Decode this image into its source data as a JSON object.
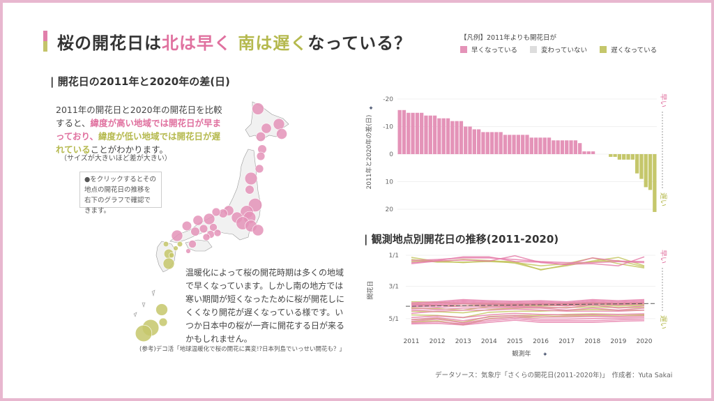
{
  "title": {
    "part1": "桜の開花日は",
    "part2": "北は早く",
    "part3": "南は遅く",
    "part4": "なっている？"
  },
  "legend": {
    "heading": "【凡例】2011年よりも開花日が",
    "items": [
      {
        "label": "早くなっている",
        "color": "#e493b8"
      },
      {
        "label": "変わっていない",
        "color": "#dddddd"
      },
      {
        "label": "遅くなっている",
        "color": "#c5c76b"
      }
    ]
  },
  "map_section": {
    "title": "| 開花日の2011年と2020年の差(日)",
    "desc": {
      "p1": "2011年の開花日と2020年の開花日を比較すると、",
      "p2": "緯度が高い地域では開花日が早まっており、",
      "p3": "緯度が低い地域では開花日が遅れている",
      "p4": "ことがわかります。"
    },
    "note": "（サイズが大きいほど差が大きい）",
    "click_hint": "●をクリックするとその地点の開花日の推移を右下のグラフで確認できます。",
    "desc2": "温暖化によって桜の開花時期は多くの地域で早くなっています。しかし南の地方では寒い期間が短くなったために桜が開花しにくくなり開花が遅くなっている様です。いつか日本中の桜が一斉に開花する日が来るかもしれません。",
    "reference": "(参考)デコ活「地球温暖化で桜の開花に異変!?日本列島でいっせい開花も？」"
  },
  "line_section": {
    "title": "| 観測地点別開花日の推移(2011-2020)"
  },
  "footer": "データソース：気象庁「さくらの開花日(2011-2020年)」　作成者：Yuta Sakai",
  "colors": {
    "pink": "#e493b8",
    "olive": "#c5c76b",
    "border": "#e8b7cf"
  },
  "chart_data": [
    {
      "type": "bar",
      "title": "開花日の2011年と2020年の差(日)",
      "ylabel": "2011年と2020年の差(日)",
      "ylim": [
        -20,
        20
      ],
      "y_reversed": true,
      "yticks": [
        "-20",
        "-10",
        "0",
        "10",
        "20"
      ],
      "side_labels": {
        "top": "早い",
        "bottom": "遅い"
      },
      "values": [
        -16,
        -16,
        -15,
        -15,
        -15,
        -15,
        -14,
        -14,
        -14,
        -13,
        -13,
        -13,
        -12,
        -12,
        -12,
        -10,
        -10,
        -9,
        -9,
        -8,
        -8,
        -8,
        -8,
        -8,
        -7,
        -7,
        -7,
        -7,
        -7,
        -7,
        -6,
        -6,
        -6,
        -6,
        -6,
        -5,
        -5,
        -5,
        -5,
        -5,
        -5,
        -4,
        -1,
        -1,
        -1,
        0,
        0,
        0,
        1,
        1,
        2,
        2,
        2,
        2,
        7,
        9,
        12,
        13,
        21
      ]
    },
    {
      "type": "line",
      "title": "観測地点別開花日の推移(2011-2020)",
      "xlabel": "観測年",
      "ylabel": "開花日",
      "x": [
        "2011",
        "2012",
        "2013",
        "2014",
        "2015",
        "2016",
        "2017",
        "2018",
        "2019",
        "2020"
      ],
      "yticks": [
        "1/1",
        "3/1",
        "5/1"
      ],
      "y_units": "day of year",
      "ylim": [
        0,
        140
      ],
      "side_labels": {
        "top": "早い",
        "bottom": "遅い"
      },
      "reference_line": 94,
      "series": [
        {
          "group": "late",
          "values": [
            8,
            13,
            13,
            12,
            14,
            20,
            16,
            5,
            16,
            24
          ]
        },
        {
          "group": "late",
          "values": [
            4,
            12,
            8,
            10,
            15,
            27,
            20,
            11,
            4,
            20
          ]
        },
        {
          "group": "late",
          "values": [
            12,
            11,
            14,
            11,
            12,
            28,
            18,
            12,
            10,
            22
          ]
        },
        {
          "group": "early",
          "values": [
            14,
            10,
            3,
            3,
            12,
            13,
            18,
            5,
            11,
            12
          ]
        },
        {
          "group": "early",
          "values": [
            16,
            11,
            9,
            11,
            1,
            14,
            17,
            16,
            20,
            3
          ]
        },
        {
          "group": "early",
          "values": [
            10,
            8,
            5,
            5,
            8,
            12,
            14,
            14,
            12,
            14
          ]
        },
        {
          "group": "late",
          "values": [
            88,
            89,
            92,
            91,
            92,
            92,
            91,
            90,
            91,
            90
          ]
        },
        {
          "group": "late",
          "values": [
            92,
            95,
            96,
            94,
            93,
            93,
            92,
            92,
            93,
            93
          ]
        },
        {
          "group": "late",
          "values": [
            100,
            101,
            104,
            97,
            96,
            96,
            95,
            95,
            96,
            95
          ]
        },
        {
          "group": "late",
          "values": [
            106,
            107,
            109,
            103,
            100,
            100,
            99,
            98,
            99,
            99
          ]
        },
        {
          "group": "late",
          "values": [
            113,
            114,
            118,
            108,
            106,
            106,
            104,
            103,
            104,
            104
          ]
        },
        {
          "group": "late",
          "values": [
            122,
            120,
            127,
            116,
            114,
            114,
            112,
            111,
            112,
            112
          ]
        },
        {
          "group": "late",
          "values": [
            126,
            124,
            132,
            120,
            117,
            117,
            115,
            114,
            115,
            114
          ]
        },
        {
          "group": "early",
          "values": [
            90,
            88,
            84,
            86,
            87,
            86,
            88,
            84,
            86,
            84
          ]
        },
        {
          "group": "early",
          "values": [
            92,
            90,
            86,
            88,
            89,
            88,
            90,
            86,
            88,
            86
          ]
        },
        {
          "group": "early",
          "values": [
            94,
            92,
            88,
            90,
            91,
            90,
            92,
            88,
            90,
            88
          ]
        },
        {
          "group": "early",
          "values": [
            96,
            94,
            90,
            92,
            93,
            92,
            94,
            90,
            92,
            90
          ]
        },
        {
          "group": "early",
          "values": [
            98,
            96,
            92,
            94,
            95,
            94,
            96,
            92,
            94,
            92
          ]
        },
        {
          "group": "early",
          "values": [
            102,
            99,
            96,
            97,
            97,
            98,
            100,
            94,
            100,
            96
          ]
        },
        {
          "group": "early",
          "values": [
            105,
            103,
            100,
            100,
            99,
            100,
            104,
            100,
            104,
            100
          ]
        },
        {
          "group": "early",
          "values": [
            110,
            106,
            104,
            104,
            102,
            104,
            106,
            106,
            106,
            104
          ]
        },
        {
          "group": "early",
          "values": [
            118,
            115,
            118,
            113,
            110,
            112,
            113,
            112,
            112,
            111
          ]
        },
        {
          "group": "early",
          "values": [
            122,
            118,
            124,
            117,
            114,
            117,
            117,
            116,
            116,
            115
          ]
        },
        {
          "group": "early",
          "values": [
            125,
            121,
            128,
            121,
            117,
            121,
            121,
            120,
            119,
            118
          ]
        },
        {
          "group": "early",
          "values": [
            128,
            126,
            130,
            124,
            120,
            124,
            124,
            124,
            122,
            121
          ]
        },
        {
          "group": "early",
          "values": [
            130,
            129,
            132,
            127,
            123,
            127,
            127,
            127,
            125,
            124
          ]
        }
      ]
    },
    {
      "type": "scatter",
      "title": "開花日の2011年と2020年の差(日) map",
      "points": [
        {
          "name": "p1",
          "diff": -13
        },
        {
          "name": "p2",
          "diff": -12
        },
        {
          "name": "p3",
          "diff": -10
        },
        {
          "name": "p4",
          "diff": -11
        },
        {
          "name": "p5",
          "diff": -9
        },
        {
          "name": "p6",
          "diff": -8
        },
        {
          "name": "p7",
          "diff": -7
        },
        {
          "name": "p8",
          "diff": -7
        },
        {
          "name": "p9",
          "diff": -14
        },
        {
          "name": "p10",
          "diff": -8
        },
        {
          "name": "p11",
          "diff": -16
        },
        {
          "name": "p12",
          "diff": -15
        },
        {
          "name": "p13",
          "diff": -12
        },
        {
          "name": "p14",
          "diff": -14
        },
        {
          "name": "p15",
          "diff": -15
        },
        {
          "name": "p16",
          "diff": -13
        },
        {
          "name": "p17",
          "diff": -12
        },
        {
          "name": "p18",
          "diff": -10
        },
        {
          "name": "p19",
          "diff": -8
        },
        {
          "name": "p20",
          "diff": -7
        },
        {
          "name": "p21",
          "diff": -12
        },
        {
          "name": "p22",
          "diff": -10
        },
        {
          "name": "p23",
          "diff": -9
        },
        {
          "name": "p24",
          "diff": -8
        },
        {
          "name": "p25",
          "diff": -7
        },
        {
          "name": "p26",
          "diff": -6
        },
        {
          "name": "p27",
          "diff": -6
        },
        {
          "name": "p28",
          "diff": -5
        },
        {
          "name": "p29",
          "diff": -5
        },
        {
          "name": "p30",
          "diff": -12
        },
        {
          "name": "p31",
          "diff": 9
        },
        {
          "name": "p32",
          "diff": 2
        },
        {
          "name": "p33",
          "diff": 2
        },
        {
          "name": "p34",
          "diff": 1
        },
        {
          "name": "p35",
          "diff": 12
        },
        {
          "name": "p36",
          "diff": 2
        },
        {
          "name": "p37",
          "diff": -6
        },
        {
          "name": "p38",
          "diff": -1
        },
        {
          "name": "p39",
          "diff": 13
        },
        {
          "name": "p40",
          "diff": 21
        },
        {
          "name": "p41",
          "diff": 21
        },
        {
          "name": "p42",
          "diff": 7
        }
      ]
    }
  ]
}
